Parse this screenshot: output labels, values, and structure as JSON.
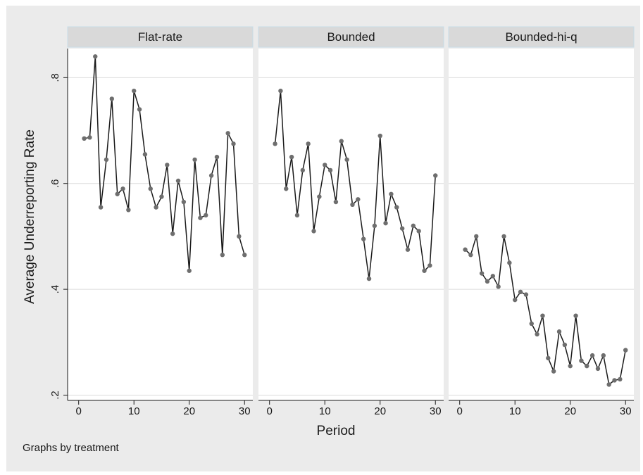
{
  "chart_data": {
    "type": "line",
    "ylabel": "Average Underreporting Rate",
    "xlabel": "Period",
    "note": "Graphs by treatment",
    "ylim": [
      0.19,
      0.855
    ],
    "xlim": [
      -2,
      31.5
    ],
    "yticks": [
      {
        "value": 0.2,
        "label": ".2"
      },
      {
        "value": 0.4,
        "label": ".4"
      },
      {
        "value": 0.6,
        "label": ".6"
      },
      {
        "value": 0.8,
        "label": ".8"
      }
    ],
    "xticks": [
      {
        "value": 0,
        "label": "0"
      },
      {
        "value": 10,
        "label": "10"
      },
      {
        "value": 20,
        "label": "20"
      },
      {
        "value": 30,
        "label": "30"
      }
    ],
    "grid": true,
    "panels": [
      {
        "title": "Flat-rate",
        "x": [
          1,
          2,
          3,
          4,
          5,
          6,
          7,
          8,
          9,
          10,
          11,
          12,
          13,
          14,
          15,
          16,
          17,
          18,
          19,
          20,
          21,
          22,
          23,
          24,
          25,
          26,
          27,
          28,
          29,
          30
        ],
        "values": [
          0.685,
          0.687,
          0.84,
          0.555,
          0.645,
          0.76,
          0.58,
          0.59,
          0.55,
          0.775,
          0.74,
          0.655,
          0.59,
          0.555,
          0.575,
          0.635,
          0.505,
          0.605,
          0.565,
          0.435,
          0.645,
          0.535,
          0.54,
          0.615,
          0.65,
          0.465,
          0.695,
          0.675,
          0.5,
          0.465
        ]
      },
      {
        "title": "Bounded",
        "x": [
          1,
          2,
          3,
          4,
          5,
          6,
          7,
          8,
          9,
          10,
          11,
          12,
          13,
          14,
          15,
          16,
          17,
          18,
          19,
          20,
          21,
          22,
          23,
          24,
          25,
          26,
          27,
          28,
          29,
          30
        ],
        "values": [
          0.675,
          0.775,
          0.59,
          0.65,
          0.54,
          0.625,
          0.675,
          0.51,
          0.575,
          0.635,
          0.625,
          0.565,
          0.68,
          0.645,
          0.56,
          0.57,
          0.495,
          0.42,
          0.52,
          0.69,
          0.525,
          0.58,
          0.555,
          0.515,
          0.475,
          0.52,
          0.51,
          0.435,
          0.445,
          0.615
        ]
      },
      {
        "title": "Bounded-hi-q",
        "x": [
          1,
          2,
          3,
          4,
          5,
          6,
          7,
          8,
          9,
          10,
          11,
          12,
          13,
          14,
          15,
          16,
          17,
          18,
          19,
          20,
          21,
          22,
          23,
          24,
          25,
          26,
          27,
          28,
          29,
          30
        ],
        "values": [
          0.475,
          0.465,
          0.5,
          0.43,
          0.415,
          0.425,
          0.405,
          0.5,
          0.45,
          0.38,
          0.395,
          0.39,
          0.335,
          0.315,
          0.35,
          0.27,
          0.245,
          0.32,
          0.295,
          0.255,
          0.35,
          0.265,
          0.255,
          0.275,
          0.25,
          0.275,
          0.22,
          0.228,
          0.23,
          0.285
        ]
      }
    ],
    "colors": {
      "figure_bg": "#ebebeb",
      "panel_bg": "#ffffff",
      "strip_bg": "#d9d9d9",
      "strip_border": "#c8dde8",
      "grid": "#dcdcdc",
      "line": "#1a1a1a",
      "marker": "#6e6e6e"
    }
  }
}
